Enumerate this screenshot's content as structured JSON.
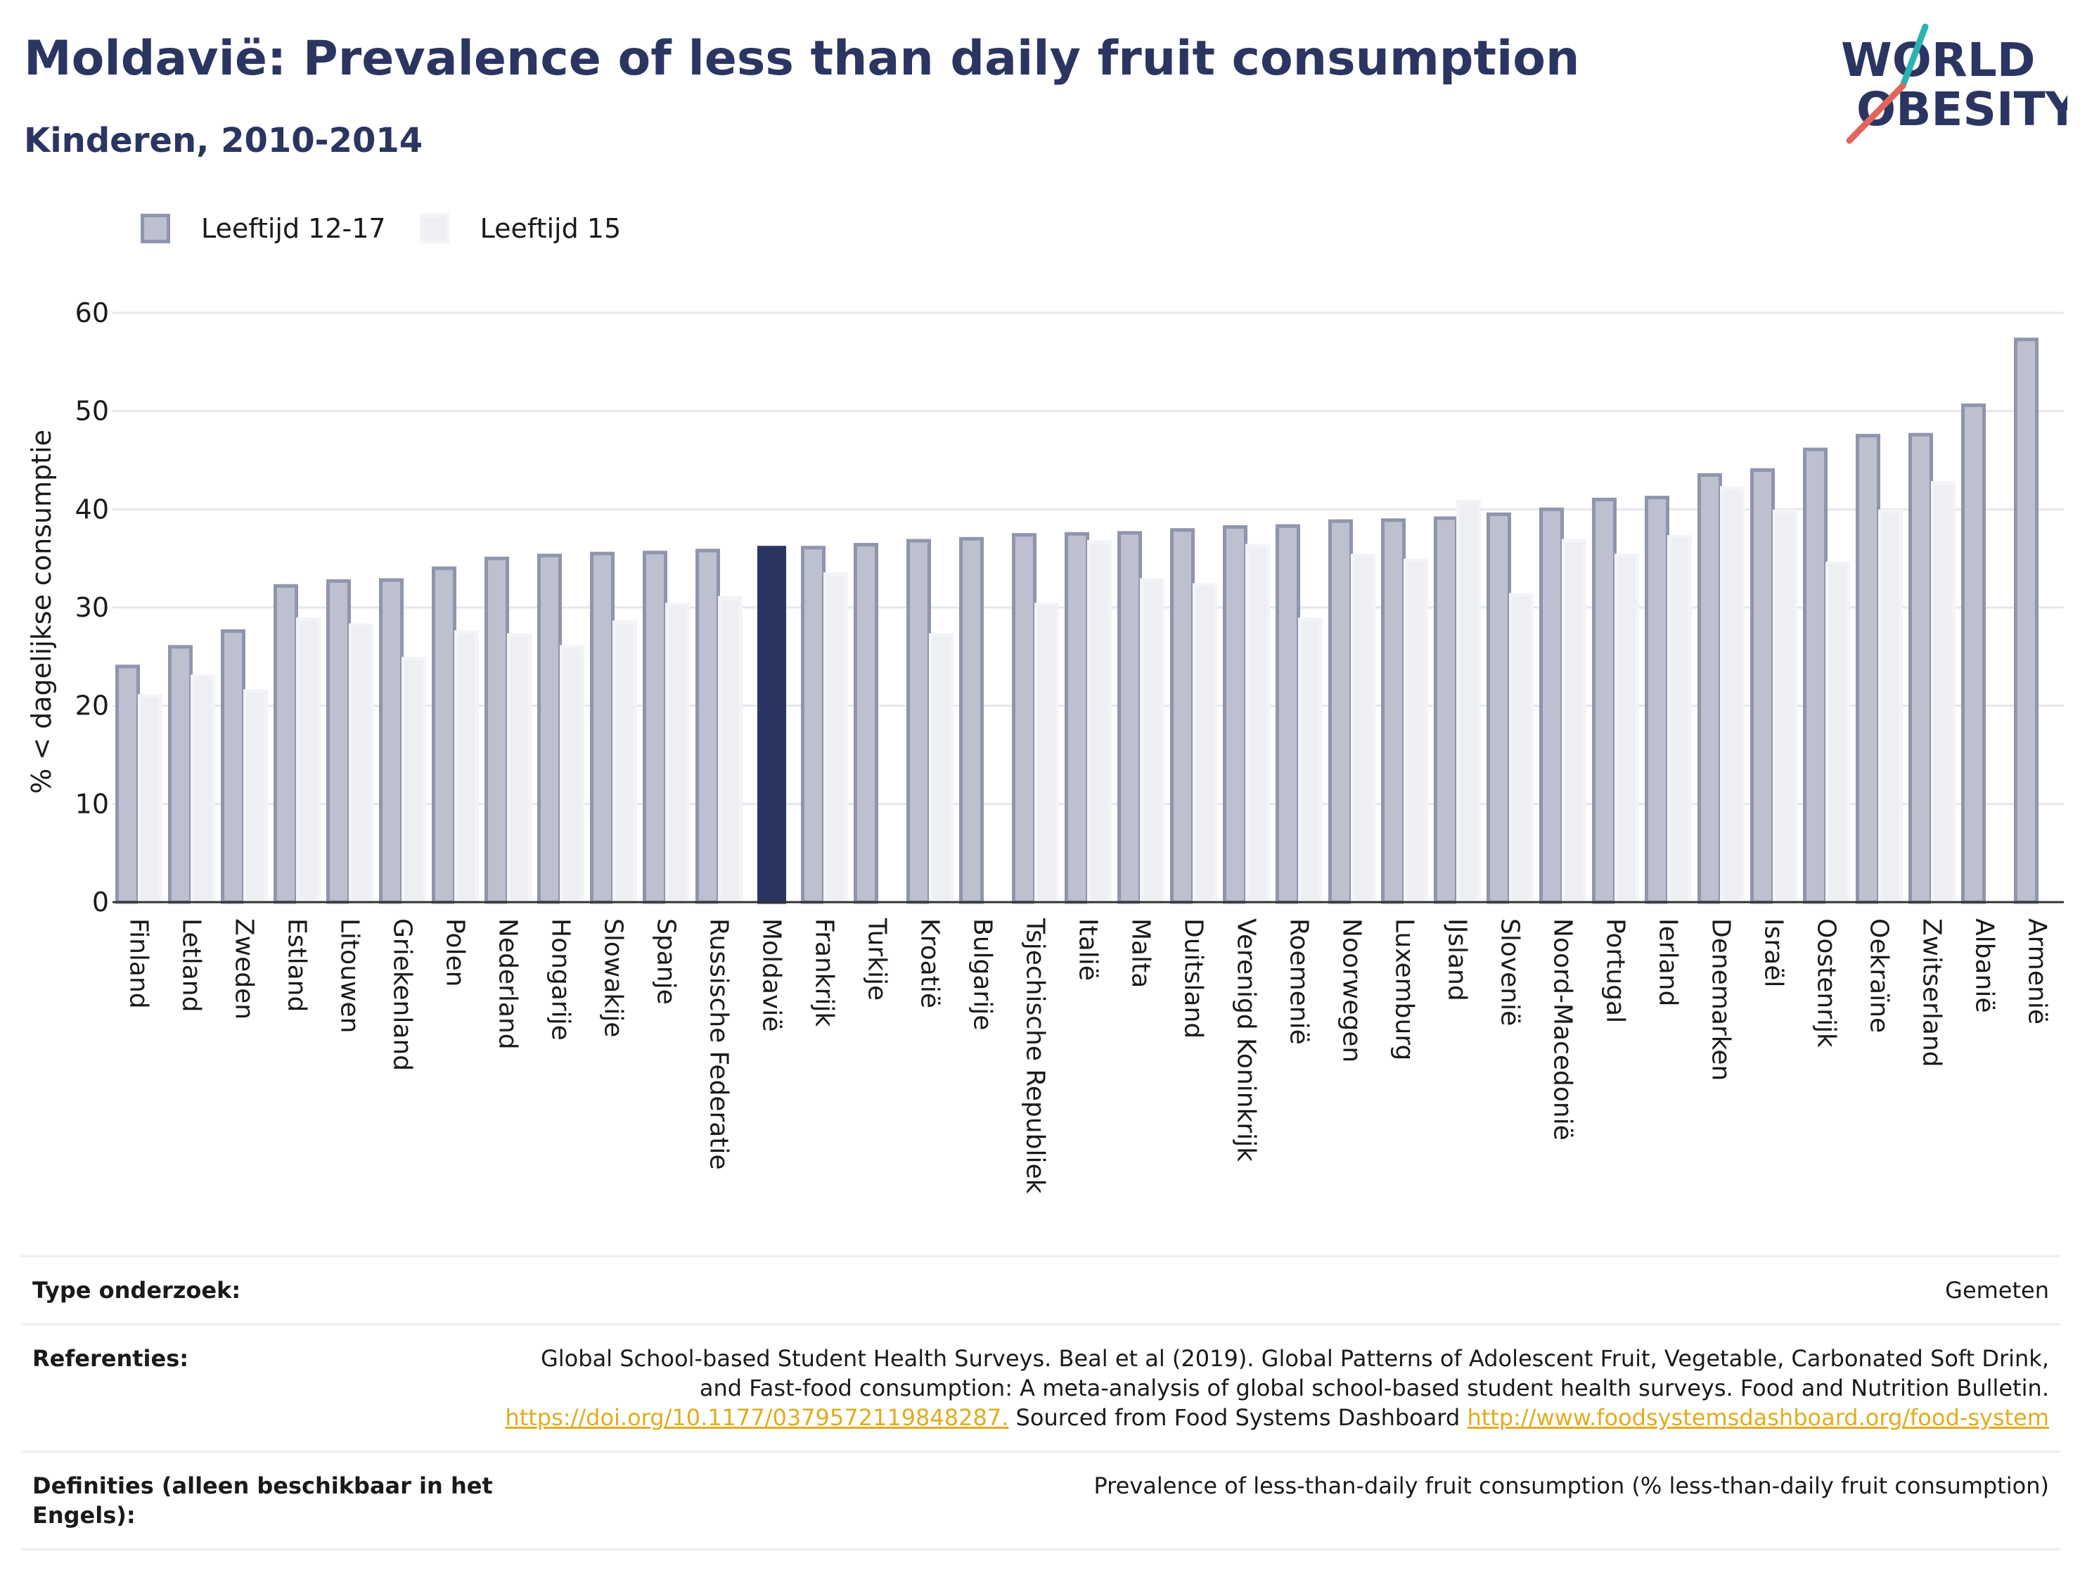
{
  "header": {
    "title": "Moldavië: Prevalence of less than daily fruit consumption",
    "subtitle": "Kinderen, 2010-2014"
  },
  "logo": {
    "line1": "WORLD",
    "line2": "OBESITY",
    "colors": {
      "text": "#2a3561",
      "accent_teal": "#2bb3b1",
      "accent_red": "#e0665a"
    }
  },
  "legend": {
    "items": [
      {
        "label": "Leeftijd 12-17"
      },
      {
        "label": "Leeftijd 15"
      }
    ]
  },
  "colors": {
    "series1_fill": "#bdc0cf",
    "series1_stroke": "#8f95ac",
    "series2_fill": "#eeeff3",
    "series2_stroke": "#f3f4f7",
    "highlight": "#2a3561",
    "grid": "#e6e7ec",
    "axis": "#333333"
  },
  "chart_data": {
    "type": "bar",
    "title": "Moldavië: Prevalence of less than daily fruit consumption",
    "subtitle": "Kinderen, 2010-2014",
    "ylabel": "% < dagelijkse consumptie",
    "xlabel": "",
    "ylim": [
      0,
      60
    ],
    "yticks": [
      0,
      10,
      20,
      30,
      40,
      50,
      60
    ],
    "grid": true,
    "legend_position": "top-left",
    "highlight_category": "Moldavië",
    "categories": [
      "Finland",
      "Letland",
      "Zweden",
      "Estland",
      "Litouwen",
      "Griekenland",
      "Polen",
      "Nederland",
      "Hongarije",
      "Slowakije",
      "Spanje",
      "Russische Federatie",
      "Moldavië",
      "Frankrijk",
      "Turkije",
      "Kroatië",
      "Bulgarije",
      "Tsjechische Republiek",
      "Italië",
      "Malta",
      "Duitsland",
      "Verenigd Koninkrijk",
      "Roemenië",
      "Noorwegen",
      "Luxemburg",
      "IJsland",
      "Slovenië",
      "Noord-Macedonië",
      "Portugal",
      "Ierland",
      "Denemarken",
      "Israël",
      "Oostenrijk",
      "Oekraïne",
      "Zwitserland",
      "Albanië",
      "Armenië"
    ],
    "series": [
      {
        "name": "Leeftijd 12-17",
        "values": [
          24.0,
          26.0,
          27.6,
          32.2,
          32.7,
          32.8,
          34.0,
          35.0,
          35.3,
          35.5,
          35.6,
          35.8,
          36.1,
          36.1,
          36.4,
          36.8,
          37.0,
          37.4,
          37.5,
          37.6,
          37.9,
          38.2,
          38.3,
          38.8,
          38.9,
          39.1,
          39.5,
          40.0,
          41.0,
          41.2,
          43.5,
          44.0,
          46.1,
          47.5,
          47.6,
          50.6,
          57.3
        ]
      },
      {
        "name": "Leeftijd 15",
        "values": [
          21.0,
          23.0,
          21.5,
          28.8,
          28.2,
          24.8,
          27.5,
          27.2,
          26.0,
          28.5,
          30.3,
          31.0,
          null,
          33.4,
          null,
          27.2,
          null,
          30.3,
          36.7,
          32.8,
          32.3,
          36.3,
          28.8,
          35.3,
          34.8,
          40.8,
          31.3,
          36.8,
          35.3,
          37.2,
          42.2,
          39.8,
          34.5,
          39.8,
          42.7,
          null,
          null
        ]
      }
    ]
  },
  "footer": {
    "rows": [
      {
        "key": "Type onderzoek:",
        "value": "Gemeten"
      },
      {
        "key": "Referenties:",
        "text1": "Global School-based Student Health Surveys. Beal et al (2019). Global Patterns of Adolescent Fruit, Vegetable, Carbonated Soft Drink, and Fast-food consumption: A meta-analysis of global school-based student health surveys. Food and Nutrition Bulletin.",
        "link1": "https://doi.org/10.1177/0379572119848287.",
        "text2": " Sourced from Food Systems Dashboard ",
        "link2": "http://www.foodsystemsdashboard.org/food-system"
      },
      {
        "key": "Definities (alleen beschikbaar in het Engels):",
        "value": "Prevalence of less-than-daily fruit consumption (% less-than-daily fruit consumption)"
      }
    ]
  }
}
